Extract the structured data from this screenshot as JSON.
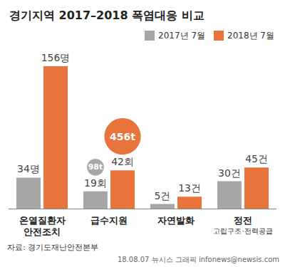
{
  "chart_data": {
    "type": "bar",
    "title": "경기지역 2017–2018 폭염대응 비교",
    "categories": [
      "온열질환자\n안전조치",
      "급수지원",
      "자연발화",
      "정전"
    ],
    "series": [
      {
        "name": "2017년 7월",
        "color": "#a6a6a6",
        "values": [
          34,
          19,
          5,
          30
        ],
        "value_labels": [
          "34명",
          "19회",
          "5건",
          "30건"
        ]
      },
      {
        "name": "2018년 7월",
        "color": "#e8743b",
        "values": [
          156,
          42,
          13,
          45
        ],
        "value_labels": [
          "156명",
          "42회",
          "13건",
          "45건"
        ]
      }
    ],
    "bubbles": [
      {
        "category": "급수지원",
        "series": "2017년 7월",
        "value": 98,
        "label": "98t"
      },
      {
        "category": "급수지원",
        "series": "2018년 7월",
        "value": 456,
        "label": "456t"
      }
    ],
    "annotations": [
      {
        "category": "정전",
        "text": "고립구조·전력공급"
      }
    ],
    "source": "자료: 경기도재난안전본부",
    "credit": "18.08.07 뉴시스 그래픽 infonews@newsis.com",
    "ylim": [
      0,
      170
    ],
    "grid": false,
    "tick_labels": false,
    "data_labels": true,
    "legend": "top right"
  }
}
